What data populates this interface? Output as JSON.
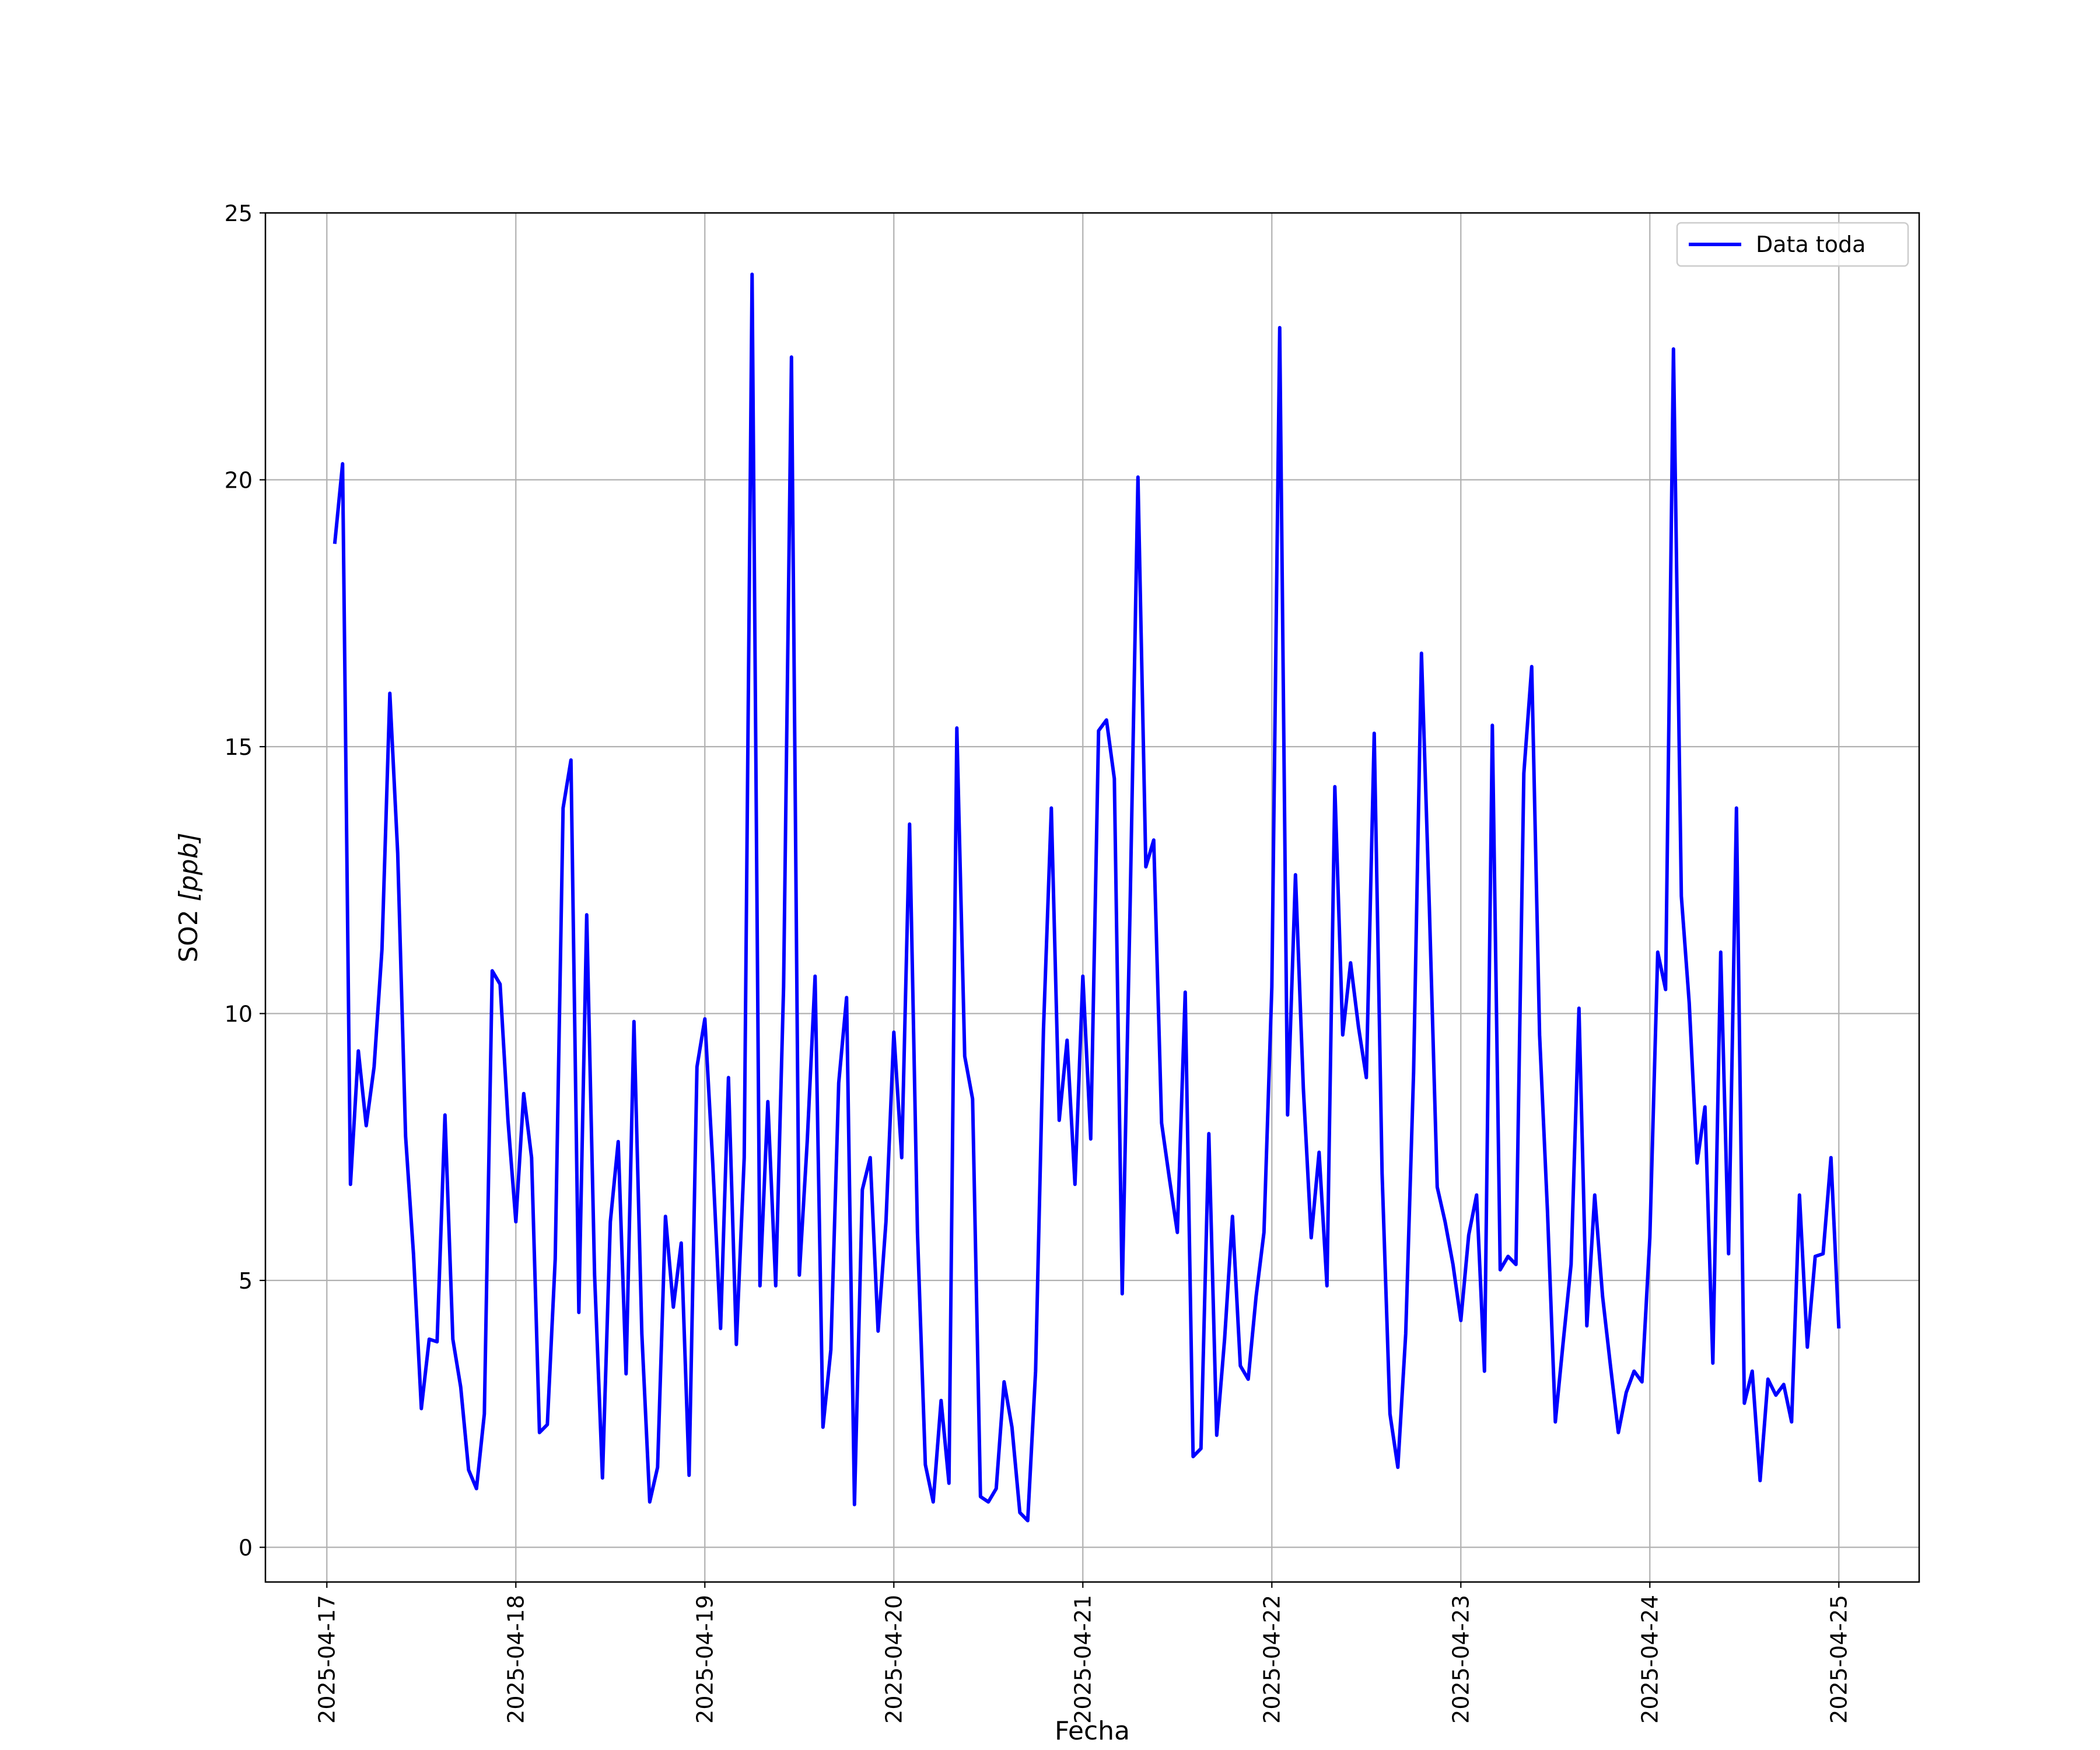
{
  "chart_data": {
    "type": "line",
    "title": "",
    "xlabel": "Fecha",
    "ylabel": "SO2 [ppb]",
    "ylabel_plain": "SO2 ",
    "ylabel_unit": "[ppb]",
    "ylim": [
      -0.65,
      25
    ],
    "xlim": [
      "2025-04-16 16:12",
      "2025-04-25 10:12"
    ],
    "yticks": [
      0,
      5,
      10,
      15,
      20,
      25
    ],
    "xticks": [
      "2025-04-17",
      "2025-04-18",
      "2025-04-19",
      "2025-04-20",
      "2025-04-21",
      "2025-04-22",
      "2025-04-23",
      "2025-04-24",
      "2025-04-25"
    ],
    "grid": true,
    "legend_position": "upper right",
    "start": "2025-04-17T01:00",
    "step_hours": 1,
    "series": [
      {
        "name": "Data toda",
        "color": "#0000ff",
        "values": [
          18.8,
          20.3,
          6.8,
          9.3,
          7.9,
          9.0,
          11.2,
          16.0,
          13.0,
          7.7,
          5.5,
          2.6,
          3.9,
          3.85,
          8.1,
          3.9,
          3.0,
          1.45,
          1.1,
          2.5,
          10.8,
          10.55,
          8.0,
          6.1,
          8.5,
          7.3,
          2.15,
          2.3,
          5.4,
          13.85,
          14.75,
          4.4,
          11.85,
          5.1,
          1.3,
          6.1,
          7.6,
          3.25,
          9.85,
          4.0,
          0.85,
          1.5,
          6.2,
          4.5,
          5.7,
          1.35,
          9.0,
          9.9,
          7.2,
          4.1,
          8.8,
          3.8,
          7.3,
          23.85,
          4.9,
          8.35,
          4.9,
          10.5,
          22.3,
          5.1,
          7.6,
          10.7,
          2.25,
          3.7,
          8.7,
          10.3,
          0.8,
          6.7,
          7.3,
          4.05,
          6.1,
          9.65,
          7.3,
          13.55,
          5.9,
          1.55,
          0.85,
          2.75,
          1.2,
          15.35,
          9.2,
          8.4,
          0.95,
          0.85,
          1.1,
          3.1,
          2.25,
          0.65,
          0.5,
          3.3,
          9.7,
          13.85,
          8.0,
          9.5,
          6.8,
          10.7,
          7.65,
          15.3,
          15.5,
          14.4,
          4.75,
          12.0,
          20.05,
          12.75,
          13.25,
          7.95,
          6.9,
          5.9,
          10.4,
          1.7,
          1.85,
          7.75,
          2.1,
          3.9,
          6.2,
          3.4,
          3.15,
          4.7,
          5.9,
          10.5,
          22.85,
          8.1,
          12.6,
          8.6,
          5.8,
          7.4,
          4.9,
          14.25,
          9.6,
          10.95,
          9.75,
          8.8,
          15.25,
          7.0,
          2.5,
          1.5,
          4.0,
          8.9,
          16.75,
          12.0,
          6.75,
          6.1,
          5.3,
          4.25,
          5.85,
          6.6,
          3.3,
          15.4,
          5.2,
          5.45,
          5.3,
          14.5,
          16.5,
          9.6,
          6.3,
          2.35,
          3.85,
          5.3,
          10.1,
          4.15,
          6.6,
          4.7,
          3.4,
          2.15,
          2.9,
          3.3,
          3.1,
          5.8,
          11.15,
          10.45,
          22.45,
          12.2,
          10.2,
          7.2,
          8.25,
          3.45,
          11.15,
          5.5,
          13.85,
          2.7,
          3.3,
          1.25,
          3.15,
          2.85,
          3.05,
          2.35,
          6.6,
          3.75,
          5.45,
          5.5,
          7.3,
          4.1
        ]
      }
    ]
  }
}
